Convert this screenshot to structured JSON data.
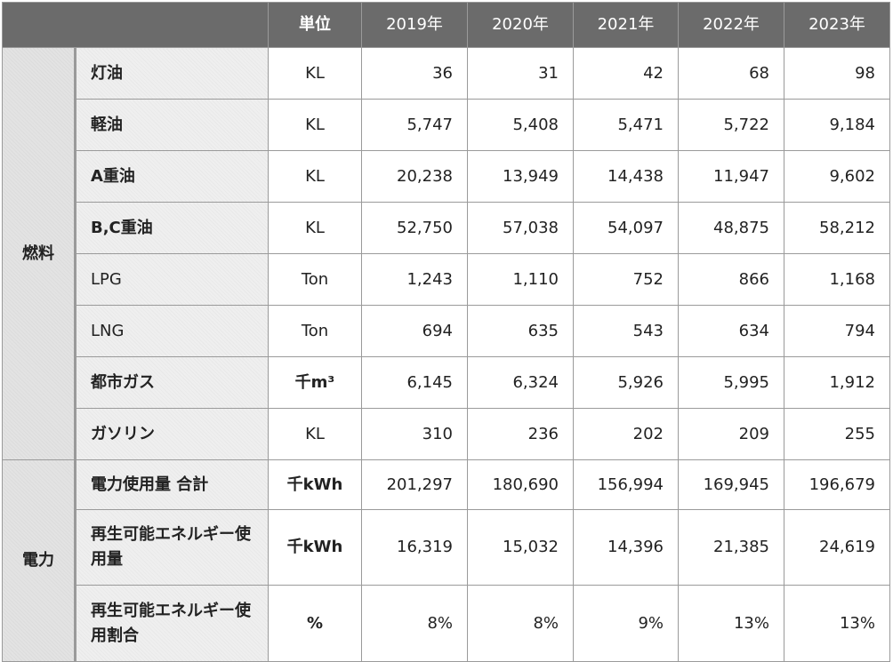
{
  "header": {
    "unit_label": "単位",
    "years": [
      "2019年",
      "2020年",
      "2021年",
      "2022年",
      "2023年"
    ]
  },
  "groups": {
    "fuel": "燃料",
    "power": "電力"
  },
  "fuel_rows": [
    {
      "item": "灯油",
      "unit": "KL",
      "values": [
        "36",
        "31",
        "42",
        "68",
        "98"
      ]
    },
    {
      "item": "軽油",
      "unit": "KL",
      "values": [
        "5,747",
        "5,408",
        "5,471",
        "5,722",
        "9,184"
      ]
    },
    {
      "item": "A重油",
      "unit": "KL",
      "values": [
        "20,238",
        "13,949",
        "14,438",
        "11,947",
        "9,602"
      ]
    },
    {
      "item": "B,C重油",
      "unit": "KL",
      "values": [
        "52,750",
        "57,038",
        "54,097",
        "48,875",
        "58,212"
      ]
    },
    {
      "item": "LPG",
      "unit": "Ton",
      "values": [
        "1,243",
        "1,110",
        "752",
        "866",
        "1,168"
      ]
    },
    {
      "item": "LNG",
      "unit": "Ton",
      "values": [
        "694",
        "635",
        "543",
        "634",
        "794"
      ]
    },
    {
      "item": "都市ガス",
      "unit": "千m³",
      "values": [
        "6,145",
        "6,324",
        "5,926",
        "5,995",
        "1,912"
      ]
    },
    {
      "item": "ガソリン",
      "unit": "KL",
      "values": [
        "310",
        "236",
        "202",
        "209",
        "255"
      ]
    }
  ],
  "power_rows": [
    {
      "item": "電力使用量 合計",
      "unit": "千kWh",
      "values": [
        "201,297",
        "180,690",
        "156,994",
        "169,945",
        "196,679"
      ]
    },
    {
      "item": "再生可能エネルギー使用量",
      "unit": "千kWh",
      "values": [
        "16,319",
        "15,032",
        "14,396",
        "21,385",
        "24,619"
      ]
    },
    {
      "item": "再生可能エネルギー使用割合",
      "unit": "%",
      "values": [
        "8%",
        "8%",
        "9%",
        "13%",
        "13%"
      ]
    }
  ]
}
